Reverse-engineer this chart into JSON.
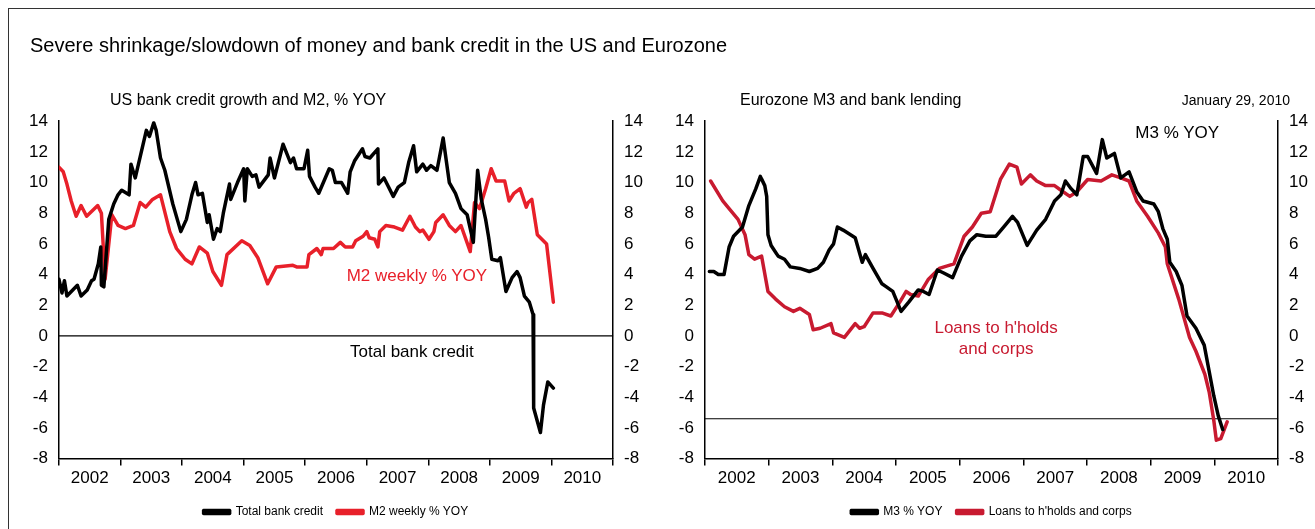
{
  "chart_data": [
    {
      "type": "line",
      "title": "Severe shrinkage/slowdown of money and bank credit in the US and Eurozone",
      "subtitle": "US bank credit growth and M2, % YOY",
      "xlim": [
        2002,
        2011
      ],
      "xticks": [
        {
          "value": 2002,
          "label": null
        },
        {
          "value": 2002.5,
          "label": "2002"
        },
        {
          "value": 2003,
          "label": null
        },
        {
          "value": 2003.5,
          "label": "2003"
        },
        {
          "value": 2004,
          "label": null
        },
        {
          "value": 2004.5,
          "label": "2004"
        },
        {
          "value": 2005,
          "label": null
        },
        {
          "value": 2005.5,
          "label": "2005"
        },
        {
          "value": 2006,
          "label": null
        },
        {
          "value": 2006.5,
          "label": "2006"
        },
        {
          "value": 2007,
          "label": null
        },
        {
          "value": 2007.5,
          "label": "2007"
        },
        {
          "value": 2008,
          "label": null
        },
        {
          "value": 2008.5,
          "label": "2008"
        },
        {
          "value": 2009,
          "label": null
        },
        {
          "value": 2009.5,
          "label": "2009"
        },
        {
          "value": 2010,
          "label": null
        },
        {
          "value": 2010.5,
          "label": "2010"
        },
        {
          "value": 2011,
          "label": null
        }
      ],
      "ylim": [
        -8,
        14
      ],
      "yticks": [
        -8,
        -6,
        -4,
        -2,
        0,
        2,
        4,
        6,
        8,
        10,
        12,
        14
      ],
      "y2lim": [
        -8,
        14
      ],
      "y2ticks": [
        -8,
        -6,
        -4,
        -2,
        0,
        2,
        4,
        6,
        8,
        10,
        12,
        14
      ],
      "legend": "bottom",
      "ref_lines": [
        {
          "axis": "y",
          "value": 0
        }
      ],
      "series": [
        {
          "name": "Total bank credit",
          "color": "#000000",
          "x": [
            2002.0,
            2002.05,
            2002.09,
            2002.13,
            2002.3,
            2002.36,
            2002.46,
            2002.53,
            2002.57,
            2002.64,
            2002.68,
            2002.69,
            2002.73,
            2002.81,
            2002.89,
            2002.96,
            2003.02,
            2003.14,
            2003.17,
            2003.24,
            2003.42,
            2003.47,
            2003.54,
            2003.58,
            2003.65,
            2003.72,
            2003.85,
            2003.98,
            2004.07,
            2004.16,
            2004.22,
            2004.26,
            2004.33,
            2004.41,
            2004.44,
            2004.51,
            2004.57,
            2004.62,
            2004.67,
            2004.77,
            2004.79,
            2004.9,
            2005.0,
            2005.02,
            2005.06,
            2005.14,
            2005.2,
            2005.25,
            2005.4,
            2005.43,
            2005.5,
            2005.64,
            2005.76,
            2005.81,
            2005.86,
            2005.98,
            2006.04,
            2006.07,
            2006.16,
            2006.22,
            2006.39,
            2006.44,
            2006.49,
            2006.59,
            2006.69,
            2006.73,
            2006.8,
            2006.93,
            2006.97,
            2007.05,
            2007.18,
            2007.19,
            2007.28,
            2007.43,
            2007.51,
            2007.61,
            2007.68,
            2007.76,
            2007.81,
            2007.91,
            2007.97,
            2008.04,
            2008.14,
            2008.24,
            2008.34,
            2008.44,
            2008.53,
            2008.63,
            2008.73,
            2008.8,
            2008.86,
            2008.93,
            2008.98,
            2009.03,
            2009.13,
            2009.17,
            2009.26,
            2009.36,
            2009.44,
            2009.49,
            2009.56,
            2009.64,
            2009.7,
            2009.71,
            2009.82,
            2009.87,
            2009.94,
            2010.03
          ],
          "values": [
            3.7,
            2.8,
            3.6,
            2.6,
            3.3,
            2.6,
            3.0,
            3.6,
            3.7,
            4.7,
            5.8,
            3.3,
            3.2,
            7.6,
            8.6,
            9.2,
            9.5,
            9.2,
            11.2,
            10.3,
            13.4,
            13.0,
            13.9,
            13.4,
            11.6,
            10.8,
            8.6,
            6.8,
            7.6,
            9.2,
            10.0,
            9.2,
            9.3,
            7.4,
            7.9,
            6.3,
            7.0,
            6.8,
            8.0,
            9.9,
            8.9,
            10.0,
            10.9,
            8.8,
            10.9,
            10.4,
            10.5,
            9.7,
            10.5,
            11.6,
            10.3,
            12.5,
            11.3,
            11.6,
            10.9,
            10.9,
            12.1,
            10.4,
            9.7,
            9.3,
            10.9,
            10.8,
            10.0,
            10.0,
            9.3,
            10.7,
            11.4,
            12.2,
            11.7,
            11.6,
            12.2,
            9.9,
            10.3,
            9.1,
            9.7,
            10.0,
            11.3,
            12.4,
            10.7,
            11.2,
            10.8,
            11.1,
            10.8,
            12.9,
            10.0,
            9.3,
            8.3,
            7.9,
            6.1,
            10.8,
            8.9,
            7.6,
            6.4,
            5.0,
            4.9,
            5.1,
            2.9,
            3.8,
            4.2,
            3.8,
            2.6,
            2.2,
            1.4,
            -4.7,
            -6.3,
            -4.5,
            -3.0,
            -3.4
          ]
        },
        {
          "name": "M2 weekly % YOY",
          "color": "#e8202a",
          "x": [
            2002.0,
            2002.07,
            2002.13,
            2002.2,
            2002.28,
            2002.36,
            2002.45,
            2002.63,
            2002.69,
            2002.75,
            2002.86,
            2002.96,
            2003.08,
            2003.21,
            2003.32,
            2003.41,
            2003.52,
            2003.65,
            2003.8,
            2003.91,
            2004.05,
            2004.16,
            2004.28,
            2004.41,
            2004.5,
            2004.64,
            2004.73,
            2004.97,
            2005.1,
            2005.23,
            2005.39,
            2005.53,
            2005.8,
            2005.86,
            2006.03,
            2006.06,
            2006.19,
            2006.26,
            2006.29,
            2006.46,
            2006.57,
            2006.65,
            2006.77,
            2006.82,
            2006.94,
            2007.0,
            2007.04,
            2007.13,
            2007.18,
            2007.21,
            2007.31,
            2007.45,
            2007.58,
            2007.7,
            2007.79,
            2007.86,
            2007.91,
            2008.01,
            2008.09,
            2008.12,
            2008.24,
            2008.34,
            2008.44,
            2008.53,
            2008.68,
            2008.75,
            2008.83,
            2008.93,
            2009.02,
            2009.1,
            2009.24,
            2009.31,
            2009.39,
            2009.49,
            2009.59,
            2009.62,
            2009.68,
            2009.77,
            2009.92,
            2010.03
          ],
          "values": [
            11.0,
            10.7,
            9.9,
            8.8,
            7.8,
            8.5,
            7.8,
            8.5,
            8.0,
            3.7,
            7.9,
            7.2,
            7.0,
            7.2,
            8.7,
            8.4,
            8.9,
            9.2,
            6.8,
            5.7,
            5.0,
            4.7,
            5.8,
            5.4,
            4.2,
            3.3,
            5.3,
            6.2,
            5.9,
            5.1,
            3.4,
            4.5,
            4.6,
            4.5,
            4.5,
            5.3,
            5.7,
            5.3,
            5.7,
            5.7,
            6.1,
            5.8,
            5.8,
            6.2,
            6.5,
            6.8,
            6.4,
            6.3,
            5.8,
            6.8,
            7.2,
            7.1,
            6.9,
            7.8,
            7.1,
            6.8,
            6.9,
            6.3,
            6.8,
            7.4,
            7.9,
            7.2,
            6.8,
            7.2,
            5.5,
            8.7,
            8.3,
            9.6,
            10.9,
            10.1,
            10.1,
            8.8,
            9.3,
            9.6,
            8.4,
            8.7,
            8.9,
            6.6,
            6.0,
            2.2
          ]
        }
      ]
    },
    {
      "type": "line",
      "subtitle": "Eurozone M3 and bank lending",
      "xlim": [
        2002,
        2011
      ],
      "xticks": [
        {
          "value": 2002,
          "label": null
        },
        {
          "value": 2002.5,
          "label": "2002"
        },
        {
          "value": 2003,
          "label": null
        },
        {
          "value": 2003.5,
          "label": "2003"
        },
        {
          "value": 2004,
          "label": null
        },
        {
          "value": 2004.5,
          "label": "2004"
        },
        {
          "value": 2005,
          "label": null
        },
        {
          "value": 2005.5,
          "label": "2005"
        },
        {
          "value": 2006,
          "label": null
        },
        {
          "value": 2006.5,
          "label": "2006"
        },
        {
          "value": 2007,
          "label": null
        },
        {
          "value": 2007.5,
          "label": "2007"
        },
        {
          "value": 2008,
          "label": null
        },
        {
          "value": 2008.5,
          "label": "2008"
        },
        {
          "value": 2009,
          "label": null
        },
        {
          "value": 2009.5,
          "label": "2009"
        },
        {
          "value": 2010,
          "label": null
        },
        {
          "value": 2010.5,
          "label": "2010"
        },
        {
          "value": 2011,
          "label": null
        }
      ],
      "ylim": [
        -8,
        14
      ],
      "yticks": [
        -8,
        -6,
        -4,
        -2,
        0,
        2,
        4,
        6,
        8,
        10,
        12,
        14
      ],
      "y2lim": [
        -8,
        14
      ],
      "y2ticks": [
        -8,
        -6,
        -4,
        -2,
        0,
        2,
        4,
        6,
        8,
        10,
        12,
        14
      ],
      "legend": "bottom",
      "ref_lines": [
        {
          "axis": "y",
          "value": -5.4
        }
      ],
      "annotations": [
        "January 29, 2010"
      ],
      "series": [
        {
          "name": "M3 % YOY",
          "color": "#000000",
          "x": [
            2002.07,
            2002.14,
            2002.21,
            2002.3,
            2002.38,
            2002.45,
            2002.59,
            2002.69,
            2002.8,
            2002.87,
            2002.94,
            2002.97,
            2002.99,
            2003.04,
            2003.15,
            2003.25,
            2003.34,
            2003.49,
            2003.64,
            2003.77,
            2003.86,
            2003.95,
            2004.02,
            2004.08,
            2004.17,
            2004.36,
            2004.47,
            2004.52,
            2004.64,
            2004.78,
            2004.85,
            2004.95,
            2005.08,
            2005.2,
            2005.35,
            2005.43,
            2005.52,
            2005.65,
            2005.75,
            2005.89,
            2006.03,
            2006.16,
            2006.27,
            2006.41,
            2006.57,
            2006.69,
            2006.83,
            2006.91,
            2007.06,
            2007.21,
            2007.35,
            2007.49,
            2007.59,
            2007.66,
            2007.75,
            2007.84,
            2007.94,
            2008.01,
            2008.15,
            2008.24,
            2008.31,
            2008.43,
            2008.53,
            2008.66,
            2008.78,
            2008.88,
            2009.05,
            2009.12,
            2009.19,
            2009.26,
            2009.3,
            2009.4,
            2009.49,
            2009.57,
            2009.71,
            2009.84,
            2009.99,
            2010.06,
            2010.13
          ],
          "values": [
            4.2,
            4.2,
            4.0,
            4.0,
            5.8,
            6.5,
            7.1,
            8.5,
            9.6,
            10.4,
            9.8,
            9.1,
            6.6,
            5.9,
            5.2,
            5.0,
            4.5,
            4.4,
            4.2,
            4.4,
            4.8,
            5.6,
            6.0,
            7.1,
            6.9,
            6.4,
            4.8,
            5.3,
            4.4,
            3.4,
            3.2,
            2.9,
            1.6,
            2.2,
            3.0,
            2.9,
            2.7,
            4.3,
            4.1,
            3.8,
            5.2,
            6.2,
            6.6,
            6.5,
            6.5,
            7.1,
            7.8,
            7.4,
            5.9,
            6.9,
            7.6,
            8.8,
            9.2,
            10.1,
            9.6,
            9.2,
            11.7,
            11.7,
            10.6,
            12.8,
            11.6,
            11.9,
            10.3,
            10.7,
            9.4,
            8.8,
            8.6,
            8.1,
            7.0,
            6.3,
            4.8,
            4.2,
            3.3,
            1.3,
            0.5,
            -0.6,
            -3.9,
            -5.2,
            -6.1
          ]
        },
        {
          "name": "Loans to h'holds and corps",
          "color": "#c81a30",
          "x": [
            2002.09,
            2002.28,
            2002.38,
            2002.52,
            2002.63,
            2002.69,
            2002.78,
            2002.89,
            2002.99,
            2003.11,
            2003.25,
            2003.39,
            2003.49,
            2003.64,
            2003.7,
            2003.81,
            2003.98,
            2004.02,
            2004.19,
            2004.36,
            2004.43,
            2004.5,
            2004.64,
            2004.78,
            2004.92,
            2005.06,
            2005.16,
            2005.23,
            2005.35,
            2005.51,
            2005.68,
            2005.91,
            2006.07,
            2006.2,
            2006.34,
            2006.48,
            2006.64,
            2006.78,
            2006.9,
            2006.97,
            2007.11,
            2007.21,
            2007.35,
            2007.49,
            2007.59,
            2007.73,
            2007.84,
            2008.01,
            2008.22,
            2008.39,
            2008.53,
            2008.66,
            2008.78,
            2008.95,
            2009.12,
            2009.23,
            2009.26,
            2009.44,
            2009.61,
            2009.71,
            2009.85,
            2009.92,
            2009.99,
            2010.03,
            2010.1,
            2010.2
          ],
          "values": [
            10.1,
            8.8,
            8.3,
            7.6,
            6.6,
            5.3,
            5.0,
            5.2,
            2.9,
            2.4,
            1.9,
            1.6,
            1.8,
            1.4,
            0.4,
            0.5,
            0.8,
            0.2,
            -0.1,
            0.8,
            0.5,
            0.6,
            1.5,
            1.5,
            1.3,
            2.2,
            2.9,
            2.7,
            2.6,
            3.7,
            4.4,
            4.7,
            6.5,
            7.1,
            8.0,
            8.1,
            10.2,
            11.2,
            11.0,
            9.9,
            10.5,
            10.1,
            9.8,
            9.8,
            9.5,
            9.1,
            9.4,
            10.2,
            10.1,
            10.5,
            10.3,
            10.1,
            8.8,
            7.8,
            6.7,
            5.8,
            4.7,
            2.4,
            -0.1,
            -1.0,
            -2.5,
            -3.7,
            -5.5,
            -6.8,
            -6.7,
            -5.6
          ]
        }
      ]
    }
  ]
}
